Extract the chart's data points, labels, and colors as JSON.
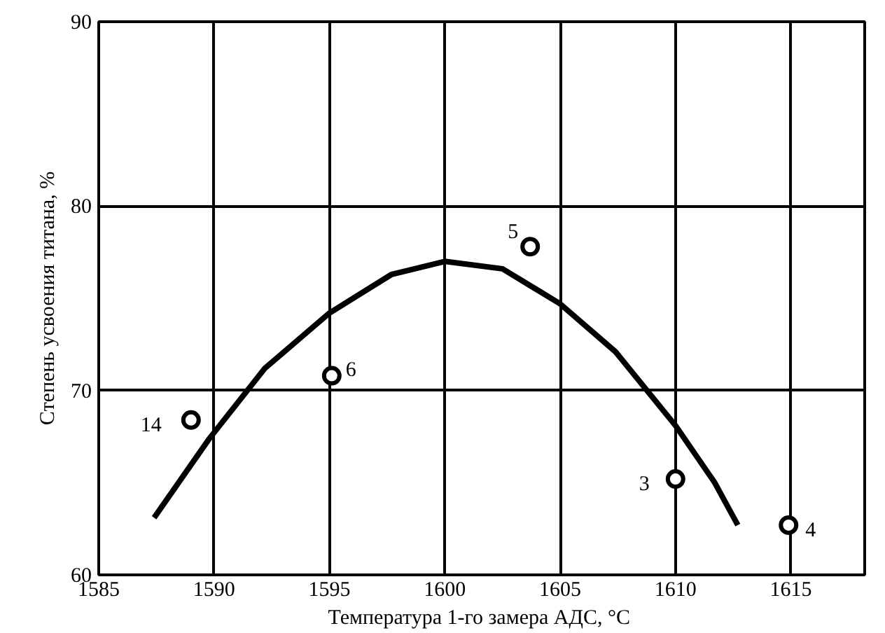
{
  "chart_data": {
    "type": "scatter",
    "xlabel": "Температура 1-го замера АДС,  °C",
    "ylabel": "Степень усвоения титана, %",
    "xlim": [
      1585,
      1618.2
    ],
    "xticks": [
      1585,
      1590,
      1595,
      1600,
      1605,
      1610,
      1615
    ],
    "ylim": [
      60,
      90
    ],
    "yticks": [
      60,
      70,
      80,
      90
    ],
    "grid": true,
    "series": [
      {
        "color": "#000000",
        "marker": "circle",
        "x": [
          1589,
          1595.1,
          1603.7,
          1610,
          1614.9
        ],
        "values": [
          68.4,
          70.8,
          77.8,
          65.2,
          62.7
        ]
      },
      {
        "type": "line",
        "color": "#000000",
        "marker": "none",
        "line_style": "solid",
        "x": [
          1587.4,
          1589.8,
          1592.2,
          1595,
          1597.7,
          1600,
          1602.5,
          1605,
          1607.4,
          1610,
          1611.7,
          1612.7
        ],
        "values": [
          63.1,
          67.4,
          71.2,
          74.2,
          76.3,
          77.0,
          76.6,
          74.7,
          72.1,
          68.1,
          65.0,
          62.7
        ]
      }
    ],
    "annotations": [
      {
        "text": "14",
        "x": 1589,
        "y": 68.4
      },
      {
        "text": "6",
        "x": 1595.1,
        "y": 70.8
      },
      {
        "text": "5",
        "x": 1603.7,
        "y": 77.8
      },
      {
        "text": "3",
        "x": 1610,
        "y": 65.2
      },
      {
        "text": "4",
        "x": 1614.9,
        "y": 62.7
      }
    ]
  }
}
